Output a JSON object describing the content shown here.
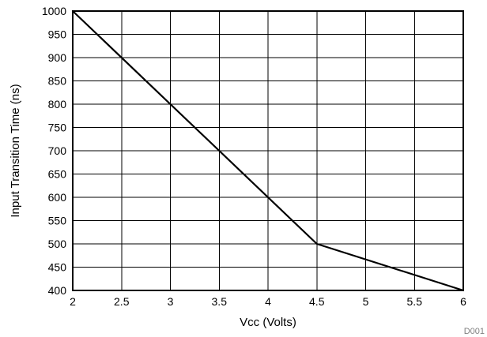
{
  "chart_data": {
    "type": "line",
    "title": "",
    "xlabel": "Vcc (Volts)",
    "ylabel": "Input Transition Time (ns)",
    "xlim": [
      2,
      6
    ],
    "ylim": [
      400,
      1000
    ],
    "x_ticks": [
      "2",
      "2.5",
      "3",
      "3.5",
      "4",
      "4.5",
      "5",
      "5.5",
      "6"
    ],
    "y_ticks": [
      "1000",
      "950",
      "900",
      "850",
      "800",
      "750",
      "700",
      "650",
      "600",
      "550",
      "500",
      "450",
      "400"
    ],
    "grid": true,
    "series": [
      {
        "points": [
          {
            "x": 2,
            "y": 1000
          },
          {
            "x": 4.5,
            "y": 500
          },
          {
            "x": 6,
            "y": 400
          }
        ]
      }
    ],
    "annotation": "D001",
    "line_color": "#000000"
  }
}
